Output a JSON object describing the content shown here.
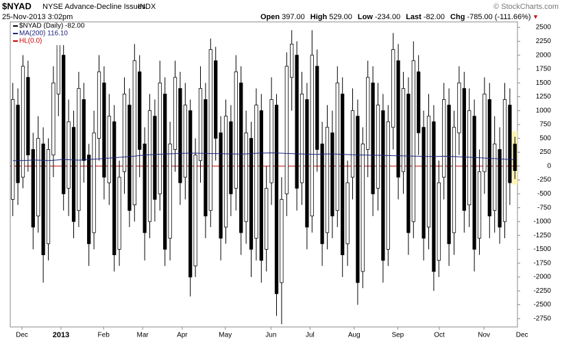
{
  "header": {
    "symbol": "$NYAD",
    "name": "NYSE Advance-Decline Issues",
    "exchange": "INDX",
    "date": "25-Nov-2013 3:02pm",
    "brand": "© StockCharts.com",
    "stats": [
      {
        "label": "Open",
        "value": "397.00"
      },
      {
        "label": "High",
        "value": "529.00"
      },
      {
        "label": "Low",
        "value": "-234.00"
      },
      {
        "label": "Last",
        "value": "-82.00"
      },
      {
        "label": "Chg",
        "value": "-785.00 (-111.66%)"
      }
    ],
    "arrow": "▼"
  },
  "chart_data": {
    "type": "candlestick",
    "name": "$NYAD (Daily) -82.00",
    "color": "#000000",
    "open": [
      -600,
      1100,
      -200,
      1600,
      300,
      -900,
      400,
      -1400,
      200,
      1300,
      2000,
      -400,
      700,
      -800,
      1200,
      200,
      -1200,
      500,
      1500,
      -300,
      800,
      -1500,
      -100,
      1100,
      -700,
      1700,
      400,
      -1000,
      900,
      -500,
      1300,
      -1300,
      300,
      1400,
      -200,
      1000,
      -1800,
      100,
      1200,
      -800,
      1900,
      600,
      -1100,
      800,
      -400,
      1500,
      -1000,
      500,
      -1300,
      1000,
      -1500,
      -300,
      1100,
      -2100,
      -500,
      1600,
      2000,
      -300,
      1200,
      -900,
      1800,
      400,
      -1200,
      600,
      -800,
      1300,
      -1400,
      -200,
      900,
      -1900,
      300,
      1500,
      -400,
      1000,
      -1500,
      700,
      1900,
      -100,
      1300,
      -1000,
      1700,
      700,
      -1100,
      800,
      -1700,
      -200,
      1100,
      -1200,
      600,
      1400,
      -700,
      900,
      -1300,
      -100,
      1200,
      -800,
      300,
      -1000,
      1100,
      397
    ],
    "high": [
      1500,
      1400,
      2000,
      1900,
      600,
      900,
      700,
      500,
      1800,
      2450,
      2200,
      1200,
      1000,
      1700,
      1500,
      400,
      1000,
      2000,
      1800,
      1300,
      1100,
      100,
      1600,
      1400,
      2200,
      2000,
      700,
      1300,
      1200,
      1900,
      1600,
      800,
      1900,
      1700,
      1500,
      1200,
      500,
      1800,
      1500,
      2300,
      2150,
      900,
      1200,
      1100,
      2000,
      1800,
      1000,
      800,
      1400,
      1300,
      0,
      1600,
      1300,
      -200,
      2050,
      2450,
      2250,
      1700,
      1500,
      2450,
      2100,
      800,
      1100,
      1000,
      1800,
      1600,
      100,
      1400,
      1200,
      700,
      1900,
      1800,
      1500,
      1300,
      1100,
      2400,
      2200,
      1700,
      1600,
      2250,
      2000,
      1000,
      1300,
      1100,
      100,
      1500,
      1400,
      1000,
      1800,
      1700,
      1400,
      1200,
      300,
      1600,
      1500,
      900,
      700,
      1500,
      1400,
      529
    ],
    "low": [
      -900,
      -700,
      -400,
      -100,
      -1500,
      -1200,
      -2100,
      -1700,
      -200,
      900,
      -800,
      -900,
      -1300,
      -1100,
      -300,
      -1800,
      -1500,
      100,
      -600,
      -700,
      -1900,
      -1800,
      -500,
      -1100,
      -1000,
      -200,
      -1700,
      -1300,
      -1000,
      -800,
      -1800,
      -1700,
      -100,
      -700,
      -600,
      -2350,
      -2000,
      -300,
      -1300,
      -1100,
      100,
      -1700,
      -1400,
      -900,
      -800,
      -1600,
      -1400,
      -2000,
      -1700,
      -2100,
      -1900,
      -700,
      -2700,
      -2850,
      -900,
      1000,
      -800,
      -700,
      -1500,
      -1200,
      -100,
      -1800,
      -1500,
      -1300,
      -1100,
      -2000,
      -1800,
      -600,
      -2500,
      -2200,
      -200,
      -900,
      -800,
      -2100,
      -1800,
      300,
      -600,
      -500,
      -1600,
      -1300,
      200,
      -1700,
      -1500,
      -2250,
      -2000,
      -600,
      -1800,
      -1600,
      200,
      -1200,
      -1100,
      -1900,
      -1600,
      -500,
      -1300,
      -1200,
      -1400,
      -1300,
      -700,
      -234
    ],
    "close": [
      1200,
      -300,
      1800,
      200,
      -1100,
      500,
      -1600,
      300,
      1500,
      2200,
      -500,
      800,
      -1000,
      1400,
      100,
      -1400,
      600,
      1700,
      -200,
      900,
      -1600,
      -200,
      1300,
      -800,
      1900,
      300,
      -1200,
      1000,
      -600,
      1500,
      -1500,
      400,
      1600,
      -300,
      1100,
      -2000,
      200,
      1400,
      -900,
      2100,
      500,
      -1300,
      900,
      -500,
      1700,
      -1200,
      600,
      -1500,
      1100,
      -1700,
      -400,
      1200,
      -2300,
      -600,
      1800,
      2200,
      -400,
      1300,
      -1100,
      2000,
      300,
      -1400,
      700,
      -900,
      1500,
      -1600,
      -300,
      1000,
      -2100,
      400,
      1600,
      -500,
      1100,
      -1700,
      800,
      2100,
      -200,
      1400,
      -1200,
      1900,
      600,
      -1300,
      900,
      -1900,
      -300,
      1200,
      -1400,
      700,
      1500,
      -800,
      1000,
      -1500,
      -100,
      1300,
      -900,
      400,
      -1100,
      1200,
      -300,
      -82
    ],
    "series": [
      {
        "name": "MA(200) 116.10",
        "color": "#1a237e",
        "values": [
          100,
          98,
          102,
          105,
          110,
          108,
          104,
          100,
          106,
          112,
          118,
          115,
          110,
          108,
          112,
          120,
          125,
          130,
          138,
          145,
          150,
          158,
          165,
          172,
          180,
          190,
          198,
          205,
          210,
          214,
          218,
          222,
          225,
          228,
          230,
          232,
          234,
          230,
          228,
          226,
          224,
          225,
          222,
          220,
          218,
          216,
          220,
          226,
          230,
          234,
          236,
          238,
          235,
          232,
          228,
          224,
          220,
          218,
          216,
          214,
          212,
          215,
          218,
          220,
          216,
          212,
          208,
          205,
          202,
          200,
          198,
          196,
          195,
          193,
          190,
          188,
          186,
          184,
          182,
          180,
          178,
          176,
          174,
          172,
          175,
          178,
          176,
          172,
          168,
          165,
          160,
          155,
          150,
          145,
          140,
          135,
          130,
          125,
          120,
          116.1
        ]
      },
      {
        "name": "HL(0.0)",
        "color": "#cc0000",
        "value": 0
      }
    ],
    "xlim": [
      0,
      100
    ],
    "xticks": [
      {
        "value": 2.3,
        "label": "Dec"
      },
      {
        "value": 10,
        "label": "2013"
      },
      {
        "value": 18.4,
        "label": "Feb"
      },
      {
        "value": 26.1,
        "label": "Mar"
      },
      {
        "value": 33.9,
        "label": "Apr"
      },
      {
        "value": 42.4,
        "label": "May"
      },
      {
        "value": 51.4,
        "label": "Jun"
      },
      {
        "value": 59.1,
        "label": "Jul"
      },
      {
        "value": 67.8,
        "label": "Aug"
      },
      {
        "value": 76.4,
        "label": "Sep"
      },
      {
        "value": 84.6,
        "label": "Oct"
      },
      {
        "value": 93.4,
        "label": "Nov"
      },
      {
        "value": 100.9,
        "label": "Dec"
      }
    ],
    "ylim": [
      -2900,
      2600
    ],
    "yticks": [
      2500,
      2250,
      2000,
      1750,
      1500,
      1250,
      1000,
      750,
      500,
      250,
      0,
      -250,
      -500,
      -750,
      -1000,
      -1250,
      -1500,
      -1750,
      -2000,
      -2250,
      -2500,
      -2750
    ]
  }
}
